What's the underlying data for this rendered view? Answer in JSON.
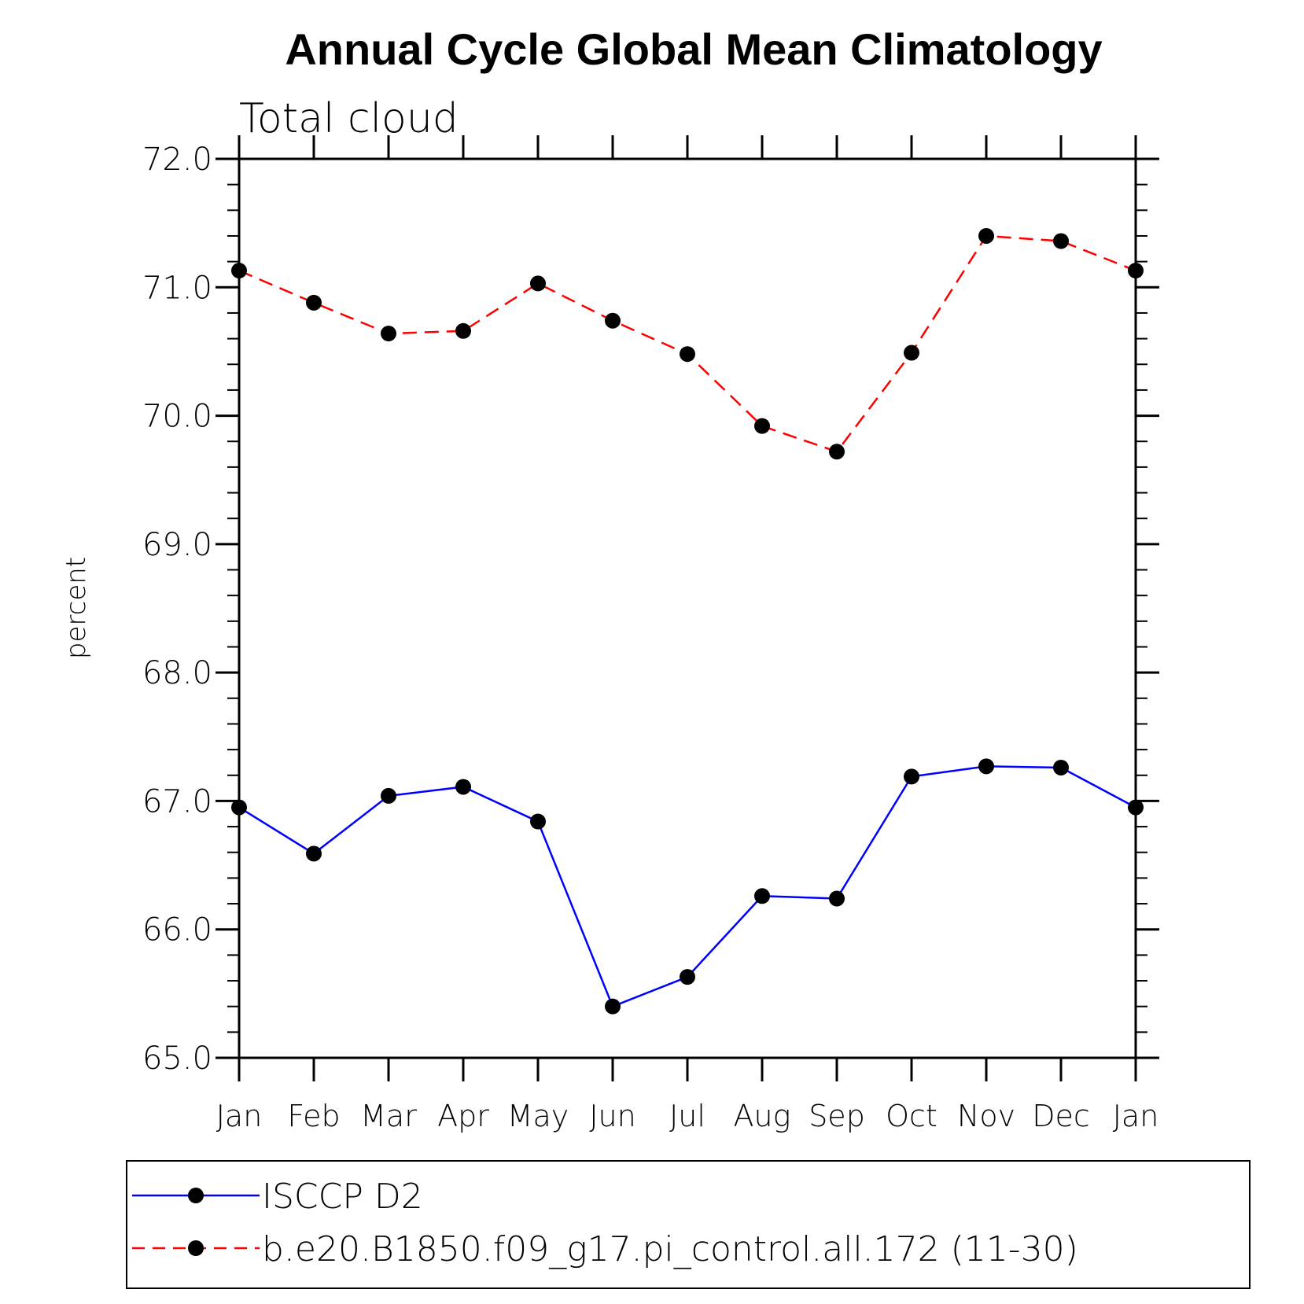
{
  "chart_data": {
    "type": "line",
    "title": "Annual Cycle Global Mean Climatology",
    "subtitle": "Total cloud",
    "ylabel": "percent",
    "xlabel": "",
    "categories": [
      "Jan",
      "Feb",
      "Mar",
      "Apr",
      "May",
      "Jun",
      "Jul",
      "Aug",
      "Sep",
      "Oct",
      "Nov",
      "Dec",
      "Jan"
    ],
    "ylim": [
      65.0,
      72.0
    ],
    "yticks": [
      "65.0",
      "66.0",
      "67.0",
      "68.0",
      "69.0",
      "70.0",
      "71.0",
      "72.0"
    ],
    "yminor_step": 0.2,
    "grid": false,
    "legend_position": "bottom",
    "series": [
      {
        "name": "ISCCP D2",
        "color": "#0000ff",
        "dash": "solid",
        "marker": "filled-circle",
        "values": [
          66.95,
          66.59,
          67.04,
          67.11,
          66.84,
          65.4,
          65.63,
          66.26,
          66.24,
          67.19,
          67.27,
          67.26,
          66.95
        ]
      },
      {
        "name": "b.e20.B1850.f09_g17.pi_control.all.172 (11-30)",
        "color": "#ff0000",
        "dash": "dashed",
        "marker": "filled-circle",
        "values": [
          71.13,
          70.88,
          70.64,
          70.66,
          71.03,
          70.74,
          70.48,
          69.92,
          69.72,
          70.49,
          71.4,
          71.36,
          71.13
        ]
      }
    ]
  }
}
